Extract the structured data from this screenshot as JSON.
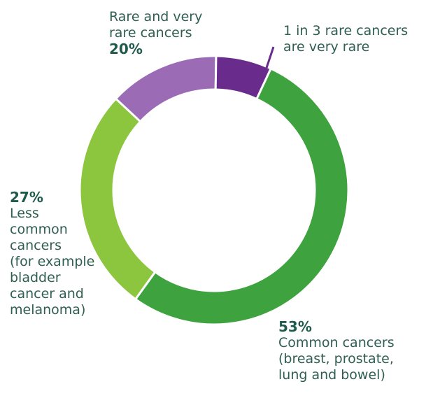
{
  "chart_data": {
    "type": "pie",
    "slices": [
      {
        "label": "Common cancers (breast, prostate, lung and bowel)",
        "value": 53,
        "color": "#3ea33f"
      },
      {
        "label": "Less common cancers (for example bladder cancer and melanoma)",
        "value": 27,
        "color": "#8cc63f"
      },
      {
        "label": "Rare cancers",
        "value": 13.3,
        "color": "#9b6bb5"
      },
      {
        "label": "Very rare cancers",
        "value": 6.7,
        "color": "#6a2c8c"
      }
    ],
    "hole": 0.75
  },
  "labels": {
    "rare": {
      "lines": [
        "Rare and very",
        "rare cancers"
      ],
      "pct": "20%"
    },
    "very_rare": {
      "lines": [
        "1 in 3 rare cancers",
        "are very rare"
      ]
    },
    "less_common": {
      "pct": "27%",
      "lines": [
        "Less",
        "common",
        "cancers",
        "(for example",
        "bladder",
        "cancer and",
        "melanoma)"
      ]
    },
    "common": {
      "pct": "53%",
      "lines": [
        "Common cancers",
        "(breast, prostate,",
        "lung and bowel)"
      ]
    }
  }
}
